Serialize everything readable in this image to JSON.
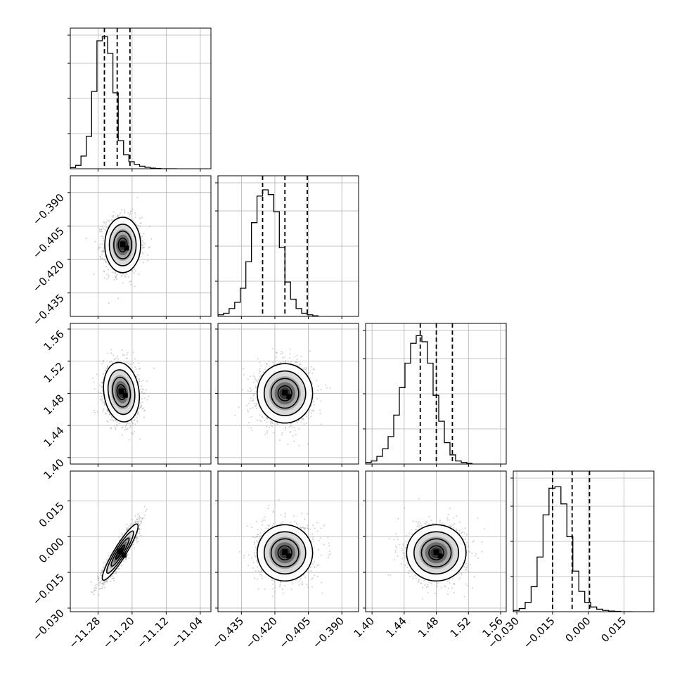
{
  "figure": {
    "type": "corner plot",
    "params": [
      {
        "ticks": [
          "−11.28",
          "−11.20",
          "−11.12",
          "−11.04"
        ],
        "tick_values": [
          -11.28,
          -11.2,
          -11.12,
          -11.04
        ],
        "range": [
          -11.345,
          -11.015
        ]
      },
      {
        "ticks": [
          "−0.435",
          "−0.420",
          "−0.405",
          "−0.390"
        ],
        "tick_values": [
          -0.435,
          -0.42,
          -0.405,
          -0.39
        ],
        "range": [
          -0.4455,
          -0.3825
        ]
      },
      {
        "ticks": [
          "1.40",
          "1.44",
          "1.48",
          "1.52",
          "1.56"
        ],
        "tick_values": [
          1.4,
          1.44,
          1.48,
          1.52,
          1.56
        ],
        "range": [
          1.392,
          1.567
        ]
      },
      {
        "ticks": [
          "−0.030",
          "−0.015",
          "0.000",
          "0.015"
        ],
        "tick_values": [
          -0.03,
          -0.015,
          0.0,
          0.015
        ],
        "range": [
          -0.0315,
          0.0275
        ]
      }
    ],
    "grid": true
  },
  "chart_data": [
    {
      "type": "histogram",
      "panel": "marginal-param-1",
      "bin_edges_start": -11.345,
      "bin_width": 0.0125,
      "counts": [
        4,
        12,
        45,
        115,
        275,
        455,
        470,
        410,
        270,
        100,
        50,
        25,
        16,
        9,
        5,
        2,
        1,
        0,
        0,
        0
      ],
      "quantiles": [
        -11.265,
        -11.235,
        -11.205
      ],
      "ylim": [
        0,
        500
      ]
    },
    {
      "type": "histogram",
      "panel": "marginal-param-2",
      "bin_edges_start": -0.4455,
      "bin_width": 0.0025,
      "counts": [
        5,
        10,
        25,
        45,
        90,
        175,
        300,
        385,
        405,
        390,
        335,
        220,
        110,
        55,
        25,
        10,
        5,
        2
      ],
      "quantiles": [
        -0.4255,
        -0.4155,
        -0.4055
      ],
      "ylim": [
        0,
        450
      ]
    },
    {
      "type": "histogram",
      "panel": "marginal-param-3",
      "bin_edges_start": 1.392,
      "bin_width": 0.007,
      "counts": [
        5,
        10,
        25,
        50,
        90,
        160,
        250,
        330,
        395,
        420,
        400,
        330,
        225,
        140,
        70,
        30,
        10,
        5,
        2
      ],
      "quantiles": [
        1.46,
        1.48,
        1.5
      ],
      "ylim": [
        0,
        460
      ]
    },
    {
      "type": "histogram",
      "panel": "marginal-param-4",
      "bin_edges_start": -0.0315,
      "bin_width": 0.0025,
      "counts": [
        4,
        10,
        30,
        80,
        175,
        310,
        395,
        400,
        345,
        240,
        130,
        65,
        30,
        15,
        8,
        4,
        2,
        1,
        0,
        0
      ],
      "quantiles": [
        -0.015,
        -0.0068,
        0.0005
      ],
      "ylim": [
        0,
        450
      ]
    },
    {
      "type": "scatter-density",
      "panel": "joint-2-vs-1",
      "x_param": 0,
      "y_param": 1,
      "center": [
        -11.222,
        -0.4135
      ],
      "sigma": [
        0.021,
        0.0062
      ],
      "rho": 0.0
    },
    {
      "type": "scatter-density",
      "panel": "joint-3-vs-1",
      "x_param": 0,
      "y_param": 2,
      "center": [
        -11.225,
        1.4815
      ],
      "sigma": [
        0.021,
        0.0185
      ],
      "rho": -0.15
    },
    {
      "type": "scatter-density",
      "panel": "joint-3-vs-2",
      "x_param": 1,
      "y_param": 2,
      "center": [
        -0.4155,
        1.48
      ],
      "sigma": [
        0.0062,
        0.0185
      ],
      "rho": 0.0
    },
    {
      "type": "scatter-density",
      "panel": "joint-4-vs-1",
      "x_param": 0,
      "y_param": 3,
      "center": [
        -11.228,
        -0.0065
      ],
      "sigma": [
        0.021,
        0.0059
      ],
      "rho": 0.92
    },
    {
      "type": "scatter-density",
      "panel": "joint-4-vs-2",
      "x_param": 1,
      "y_param": 3,
      "center": [
        -0.4155,
        -0.0068
      ],
      "sigma": [
        0.0062,
        0.0059
      ],
      "rho": 0.0
    },
    {
      "type": "scatter-density",
      "panel": "joint-4-vs-3",
      "x_param": 2,
      "y_param": 3,
      "center": [
        1.48,
        -0.0068
      ],
      "sigma": [
        0.0185,
        0.0059
      ],
      "rho": 0.0
    }
  ]
}
